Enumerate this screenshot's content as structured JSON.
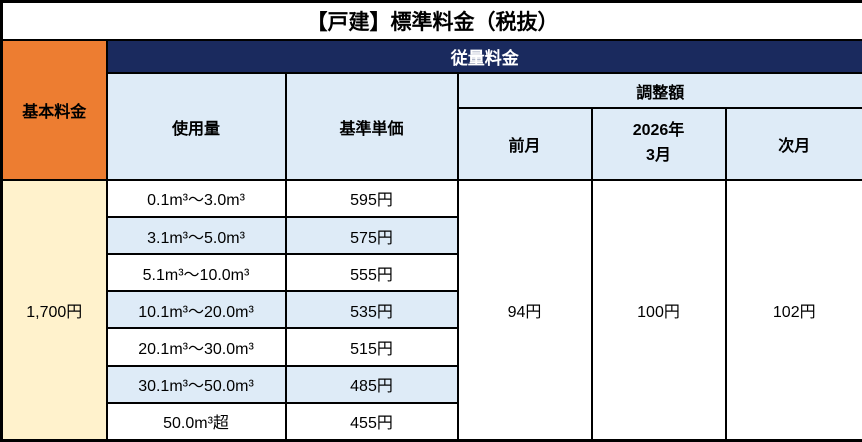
{
  "title": "【戸建】標準料金（税抜）",
  "colors": {
    "header_navy": "#1A2A5E",
    "header_orange": "#ED7D31",
    "cell_lightblue": "#DEEBF7",
    "cell_cream": "#FFF2CC",
    "border": "#000000"
  },
  "table": {
    "basic_fee": {
      "header": "基本料金",
      "value": "1,700円"
    },
    "volume_fee_header": "従量料金",
    "columns": {
      "usage": "使用量",
      "unit_price": "基準単価",
      "adjustment": "調整額"
    },
    "adjustment": {
      "prev_month_label": "前月",
      "current_month_line1": "2026年",
      "current_month_line2": "3月",
      "next_month_label": "次月",
      "prev_month_value": "94円",
      "current_month_value": "100円",
      "next_month_value": "102円"
    },
    "tiers": [
      {
        "usage": "0.1m³～3.0m³",
        "price": "595円"
      },
      {
        "usage": "3.1m³～5.0m³",
        "price": "575円"
      },
      {
        "usage": "5.1m³～10.0m³",
        "price": "555円"
      },
      {
        "usage": "10.1m³～20.0m³",
        "price": "535円"
      },
      {
        "usage": "20.1m³～30.0m³",
        "price": "515円"
      },
      {
        "usage": "30.1m³～50.0m³",
        "price": "485円"
      },
      {
        "usage": "50.0m³超",
        "price": "455円"
      }
    ]
  }
}
